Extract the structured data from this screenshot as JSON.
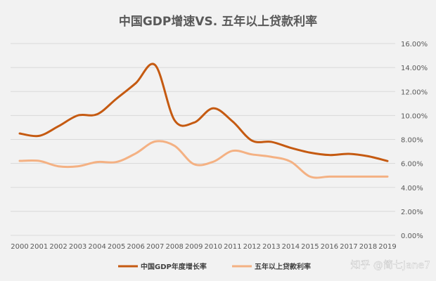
{
  "chart_data": {
    "type": "line",
    "title": "中国GDP增速VS. 五年以上贷款利率",
    "x": [
      "2000",
      "2001",
      "2002",
      "2003",
      "2004",
      "2005",
      "2006",
      "2007",
      "2008",
      "2009",
      "2010",
      "2011",
      "2012",
      "2013",
      "2014",
      "2015",
      "2016",
      "2017",
      "2018",
      "2019"
    ],
    "series": [
      {
        "name": "中国GDP年度增长率",
        "color": "#c55a11",
        "values": [
          8.5,
          8.3,
          9.1,
          10.0,
          10.1,
          11.4,
          12.7,
          14.2,
          9.6,
          9.4,
          10.6,
          9.5,
          7.9,
          7.8,
          7.3,
          6.9,
          6.7,
          6.8,
          6.6,
          6.2
        ]
      },
      {
        "name": "五年以上贷款利率",
        "color": "#f4b183",
        "values": [
          6.21,
          6.21,
          5.76,
          5.76,
          6.12,
          6.12,
          6.84,
          7.83,
          7.47,
          5.94,
          6.14,
          7.05,
          6.75,
          6.55,
          6.15,
          4.9,
          4.9,
          4.9,
          4.9,
          4.9
        ]
      }
    ],
    "ylim": [
      0,
      16
    ],
    "yticks": [
      "0.00%",
      "2.00%",
      "4.00%",
      "6.00%",
      "8.00%",
      "10.00%",
      "12.00%",
      "14.00%",
      "16.00%"
    ],
    "ytick_values": [
      0,
      2,
      4,
      6,
      8,
      10,
      12,
      14,
      16
    ],
    "y_axis_side": "right",
    "grid": true,
    "legend": "bottom"
  },
  "watermark": "知乎 @简七Jane7"
}
